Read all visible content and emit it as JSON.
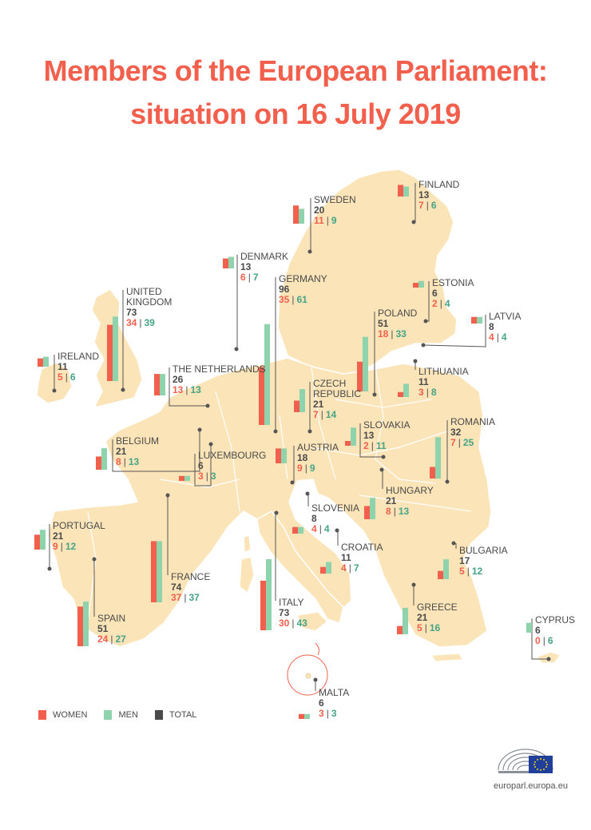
{
  "title": {
    "line1": "Members of the European Parliament:",
    "line2": "situation on 16 July 2019"
  },
  "colors": {
    "women": "#f25f4c",
    "men": "#8fd3ad",
    "total": "#4a4a4a",
    "land": "#fbe4b8",
    "accent": "#f25f4c"
  },
  "countries": [
    {
      "name": "Finland",
      "total": "13",
      "women": "7",
      "men": "6"
    },
    {
      "name": "Sweden",
      "total": "20",
      "women": "11",
      "men": "9"
    },
    {
      "name": "Denmark",
      "total": "13",
      "women": "6",
      "men": "7"
    },
    {
      "name": "Germany",
      "total": "96",
      "women": "35",
      "men": "61"
    },
    {
      "name": "Estonia",
      "total": "6",
      "women": "2",
      "men": "4"
    },
    {
      "name": "United Kingdom",
      "total": "73",
      "women": "34",
      "men": "39"
    },
    {
      "name": "Latvia",
      "total": "8",
      "women": "4",
      "men": "4"
    },
    {
      "name": "Poland",
      "total": "51",
      "women": "18",
      "men": "33"
    },
    {
      "name": "Ireland",
      "total": "11",
      "women": "5",
      "men": "6"
    },
    {
      "name": "The Netherlands",
      "total": "26",
      "women": "13",
      "men": "13"
    },
    {
      "name": "Lithuania",
      "total": "11",
      "women": "3",
      "men": "8"
    },
    {
      "name": "Czech Republic",
      "total": "21",
      "women": "7",
      "men": "14"
    },
    {
      "name": "Slovakia",
      "total": "13",
      "women": "2",
      "men": "11"
    },
    {
      "name": "Romania",
      "total": "32",
      "women": "7",
      "men": "25"
    },
    {
      "name": "Belgium",
      "total": "21",
      "women": "8",
      "men": "13"
    },
    {
      "name": "Luxembourg",
      "total": "6",
      "women": "3",
      "men": "3"
    },
    {
      "name": "Austria",
      "total": "18",
      "women": "9",
      "men": "9"
    },
    {
      "name": "Hungary",
      "total": "21",
      "women": "8",
      "men": "13"
    },
    {
      "name": "Slovenia",
      "total": "8",
      "women": "4",
      "men": "4"
    },
    {
      "name": "Portugal",
      "total": "21",
      "women": "9",
      "men": "12"
    },
    {
      "name": "Croatia",
      "total": "11",
      "women": "4",
      "men": "7"
    },
    {
      "name": "Bulgaria",
      "total": "17",
      "women": "5",
      "men": "12"
    },
    {
      "name": "France",
      "total": "74",
      "women": "37",
      "men": "37"
    },
    {
      "name": "Italy",
      "total": "73",
      "women": "30",
      "men": "43"
    },
    {
      "name": "Greece",
      "total": "21",
      "women": "5",
      "men": "16"
    },
    {
      "name": "Cyprus",
      "total": "6",
      "women": "0",
      "men": "6"
    },
    {
      "name": "Spain",
      "total": "51",
      "women": "24",
      "men": "27"
    },
    {
      "name": "Malta",
      "total": "6",
      "women": "3",
      "men": "3"
    }
  ],
  "legend": {
    "women": "WOMEN",
    "men": "MEN",
    "total": "TOTAL"
  },
  "source": "europarl.europa.eu"
}
